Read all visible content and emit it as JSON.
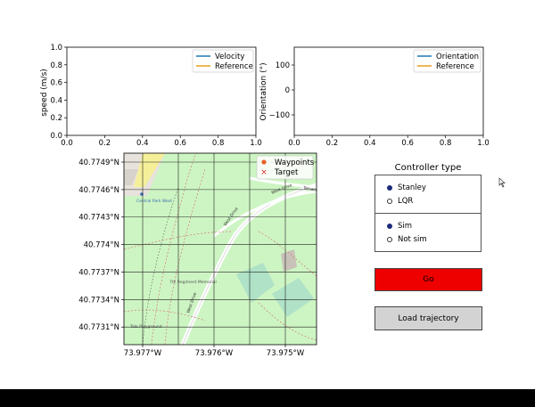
{
  "speed_chart": {
    "ylabel": "speed (m/s)",
    "yticks": [
      "0.0",
      "0.2",
      "0.4",
      "0.6",
      "0.8",
      "1.0"
    ],
    "xticks": [
      "0.0",
      "0.2",
      "0.4",
      "0.6",
      "0.8",
      "1.0"
    ],
    "legend": [
      "Velocity",
      "Reference"
    ]
  },
  "orientation_chart": {
    "ylabel": "Orientation (°)",
    "yticks": [
      "100",
      "0",
      "−100"
    ],
    "xticks": [
      "0.0",
      "0.2",
      "0.4",
      "0.6",
      "0.8",
      "1.0"
    ],
    "legend": [
      "Orientation",
      "Reference"
    ]
  },
  "map": {
    "lat_ticks": [
      "40.7749°N",
      "40.7746°N",
      "40.7743°N",
      "40.774°N",
      "40.7737°N",
      "40.7734°N",
      "40.7731°N"
    ],
    "lon_ticks": [
      "73.977°W",
      "73.976°W",
      "73.975°W"
    ],
    "legend": [
      "Waypoints",
      "Target"
    ],
    "labels": {
      "west_drive": "West Drive",
      "west_drive2": "West Drive",
      "west_drive3": "West Drive",
      "terrace": "Terrace",
      "tavern": "Tavern on the Green",
      "playground": "Tots Playground",
      "memorial": "7th Regiment Memorial",
      "west_drive_top": "West Drive",
      "park": "Central Park West"
    }
  },
  "controller": {
    "title": "Controller type",
    "options1": [
      {
        "label": "Stanley",
        "selected": true
      },
      {
        "label": "LQR",
        "selected": false
      }
    ],
    "options2": [
      {
        "label": "Sim",
        "selected": true
      },
      {
        "label": "Not sim",
        "selected": false
      }
    ]
  },
  "buttons": {
    "go": "Go",
    "load": "Load trajectory"
  },
  "colors": {
    "blue": "#1f77b4",
    "orange": "#e6a11a",
    "go_red": "#ee0000",
    "load_gray": "#d3d3d3",
    "map_green": "#cdf5c3"
  }
}
